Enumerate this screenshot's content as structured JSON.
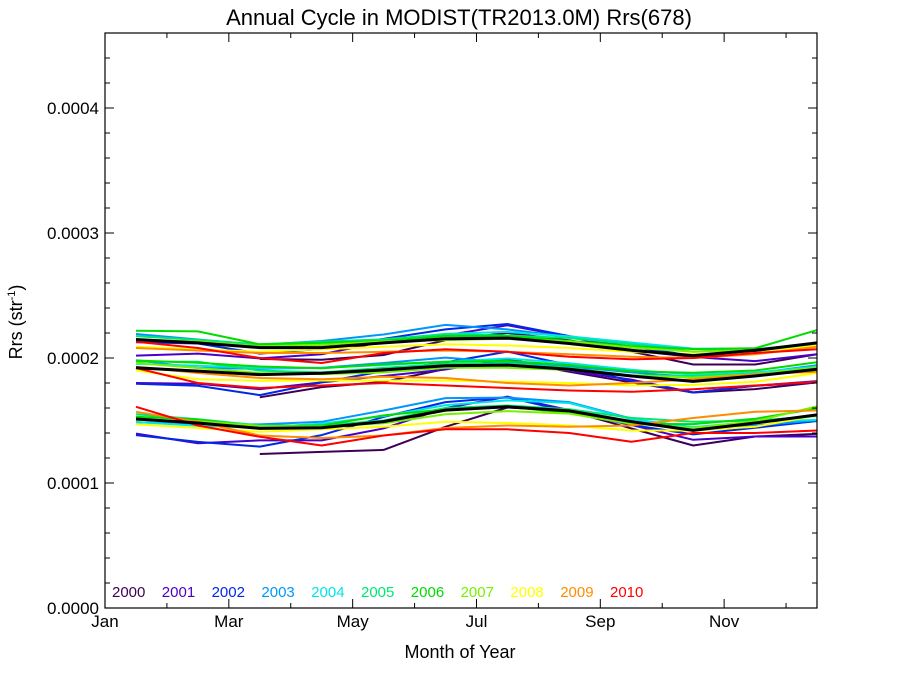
{
  "chart_data": {
    "type": "line",
    "title": "Annual Cycle in MODIST(TR2013.0M) Rrs(678)",
    "xlabel": "Month of Year",
    "ylabel": "Rrs (str",
    "ylabel_exp": "-1",
    "ylabel_end": ")",
    "xlim": [
      1,
      12.5
    ],
    "ylim": [
      0,
      0.00046
    ],
    "xticks": [
      {
        "value": 1,
        "label": "Jan"
      },
      {
        "value": 3,
        "label": "Mar"
      },
      {
        "value": 5,
        "label": "May"
      },
      {
        "value": 7,
        "label": "Jul"
      },
      {
        "value": 9,
        "label": "Sep"
      },
      {
        "value": 11,
        "label": "Nov"
      }
    ],
    "yticks": [
      {
        "value": 0,
        "label": "0.0000"
      },
      {
        "value": 0.0001,
        "label": "0.0001"
      },
      {
        "value": 0.0002,
        "label": "0.0002"
      },
      {
        "value": 0.0003,
        "label": "0.0003"
      },
      {
        "value": 0.0004,
        "label": "0.0004"
      }
    ],
    "x": [
      1.5,
      2.5,
      3.5,
      4.5,
      5.5,
      6.5,
      7.5,
      8.5,
      9.5,
      10.5,
      11.5,
      12.5
    ],
    "series": [
      {
        "name": "2000",
        "color": "#3d0057",
        "groups": [
          [
            null,
            null,
            0.0001686,
            0.0001767,
            0.000181,
            0.0001912,
            0.0001978,
            0.000189,
            0.0001805,
            0.0001724,
            0.0001751,
            0.0001805
          ],
          [
            null,
            null,
            0.0001232,
            0.0001249,
            0.0001265,
            0.000145,
            0.0001604,
            0.0001577,
            0.0001437,
            0.00013,
            0.0001372,
            0.0001393
          ],
          [
            null,
            null,
            0.0001992,
            0.0001986,
            0.0002024,
            0.0002143,
            0.0002201,
            0.0002141,
            0.0002051,
            0.0001948,
            0.0001948,
            0.000203
          ]
        ]
      },
      {
        "name": "2001",
        "color": "#4b00c8",
        "groups": [
          [
            0.00018,
            0.0001794,
            0.0001751,
            0.0001805,
            0.0001856,
            0.0001908,
            0.0001992,
            0.0001897,
            0.0001827,
            0.0001724,
            0.0001778,
            0.0001805
          ],
          [
            0.0001395,
            0.0001318,
            0.0001341,
            0.0001341,
            0.0001437,
            0.0001599,
            0.0001691,
            0.0001583,
            0.0001464,
            0.0001346,
            0.0001372,
            0.0001372
          ],
          [
            0.0002019,
            0.0002035,
            0.0001997,
            0.000203,
            0.0002132,
            0.0002181,
            0.0002262,
            0.000217,
            0.0002062,
            0.0002008,
            0.0001975,
            0.000203
          ]
        ]
      },
      {
        "name": "2002",
        "color": "#0028e6",
        "groups": [
          [
            0.0001794,
            0.0001778,
            0.0001703,
            0.0001805,
            0.0001895,
            0.0001965,
            0.0002051,
            0.0001943,
            0.0001815,
            0.0001724,
            0.0001778,
            0.0001815
          ],
          [
            0.0001383,
            0.0001329,
            0.0001291,
            0.0001383,
            0.0001529,
            0.0001647,
            0.0001686,
            0.0001572,
            0.0001464,
            0.0001389,
            0.0001442,
            0.0001496
          ],
          [
            0.0002126,
            0.0002116,
            0.0002035,
            0.0002073,
            0.0002154,
            0.0002229,
            0.0002272,
            0.0002175,
            0.0002089,
            0.0002019,
            0.0002046,
            0.0002116
          ]
        ]
      },
      {
        "name": "2003",
        "color": "#0096ff",
        "groups": [
          [
            0.0001982,
            0.0001921,
            0.0001914,
            0.0001922,
            0.000196,
            0.0002003,
            0.0001965,
            0.0001933,
            0.0001885,
            0.0001848,
            0.0001878,
            0.0001942
          ],
          [
            0.0001486,
            0.000147,
            0.0001469,
            0.000149,
            0.000158,
            0.0001679,
            0.0001683,
            0.0001647,
            0.0001515,
            0.0001432,
            0.0001459,
            0.0001502
          ],
          [
            0.0002192,
            0.0002148,
            0.0002105,
            0.0002136,
            0.0002188,
            0.0002265,
            0.0002229,
            0.0002169,
            0.0002118,
            0.0002072,
            0.0002062,
            0.0002105
          ]
        ]
      },
      {
        "name": "2004",
        "color": "#00e6e6",
        "groups": [
          [
            0.0001953,
            0.0001938,
            0.0001921,
            0.0001922,
            0.0001943,
            0.000197,
            0.0001996,
            0.0001958,
            0.0001906,
            0.0001867,
            0.0001884,
            0.0001931
          ],
          [
            0.0001488,
            0.0001458,
            0.0001442,
            0.0001475,
            0.0001535,
            0.0001623,
            0.0001661,
            0.000164,
            0.0001511,
            0.0001447,
            0.000149,
            0.0001505
          ],
          [
            0.000214,
            0.0002132,
            0.0002098,
            0.0002104,
            0.0002144,
            0.0002193,
            0.0002209,
            0.0002173,
            0.0002124,
            0.0002075,
            0.0002072,
            0.0002098
          ]
        ]
      },
      {
        "name": "2005",
        "color": "#00e673",
        "groups": [
          [
            0.0001971,
            0.000197,
            0.0001899,
            0.0001885,
            0.0001921,
            0.0001953,
            0.0001958,
            0.000192,
            0.0001861,
            0.0001856,
            0.0001874,
            0.000191
          ],
          [
            0.000155,
            0.000151,
            0.000146,
            0.000146,
            0.00015,
            0.00016,
            0.000162,
            0.000159,
            0.0001521,
            0.000149,
            0.0001499,
            0.0001535
          ],
          [
            0.0002175,
            0.0002145,
            0.000211,
            0.000213,
            0.000215,
            0.000219,
            0.000218,
            0.000216,
            0.000211,
            0.000205,
            0.000207,
            0.000212
          ]
        ]
      },
      {
        "name": "2006",
        "color": "#00dc00",
        "groups": [
          [
            0.000198,
            0.0001962,
            0.0001932,
            0.0001918,
            0.000195,
            0.000197,
            0.0001976,
            0.0001943,
            0.0001893,
            0.0001882,
            0.00019,
            0.0001966
          ],
          [
            0.000153,
            0.0001508,
            0.0001449,
            0.000146,
            0.0001541,
            0.000159,
            0.000161,
            0.000156,
            0.0001474,
            0.0001471,
            0.0001514,
            0.0001596
          ],
          [
            0.0002218,
            0.0002213,
            0.000211,
            0.0002121,
            0.0002137,
            0.0002175,
            0.0002175,
            0.0002137,
            0.0002094,
            0.0002072,
            0.0002078,
            0.0002223
          ]
        ]
      },
      {
        "name": "2007",
        "color": "#78f000",
        "groups": [
          [
            0.000196,
            0.000192,
            0.000188,
            0.0001871,
            0.0001885,
            0.0001922,
            0.0001922,
            0.0001905,
            0.000186,
            0.0001844,
            0.000187,
            0.0001925
          ],
          [
            0.0001505,
            0.0001495,
            0.0001456,
            0.000145,
            0.0001478,
            0.000155,
            0.0001575,
            0.0001555,
            0.0001474,
            0.000144,
            0.0001494,
            0.0001614
          ],
          [
            0.0002148,
            0.0002132,
            0.0002094,
            0.0002105,
            0.0002132,
            0.0002143,
            0.0002154,
            0.0002132,
            0.0002083,
            0.0002051,
            0.0002062,
            0.0002121
          ]
        ]
      },
      {
        "name": "2008",
        "color": "#ffff00",
        "groups": [
          [
            0.00019,
            0.000183,
            0.0001818,
            0.000182,
            0.000182,
            0.000182,
            0.000181,
            0.00018,
            0.000178,
            0.0001785,
            0.000181,
            0.000188
          ],
          [
            0.000147,
            0.000144,
            0.000141,
            0.000143,
            0.000145,
            0.000149,
            0.000148,
            0.000146,
            0.000142,
            0.000142,
            0.000145,
            0.000154
          ],
          [
            0.000209,
            0.000207,
            0.000205,
            0.000207,
            0.000209,
            0.000211,
            0.00021,
            0.000208,
            0.000205,
            0.000203,
            0.000204,
            0.00021
          ]
        ]
      },
      {
        "name": "2009",
        "color": "#ff8c00",
        "groups": [
          [
            0.000193,
            0.000188,
            0.000184,
            0.000183,
            0.000185,
            0.000184,
            0.00018,
            0.000178,
            0.00018,
            0.000183,
            0.000187,
            0.000189
          ],
          [
            0.000157,
            0.000149,
            0.000138,
            0.000136,
            0.000138,
            0.000144,
            0.000146,
            0.000145,
            0.000146,
            0.000152,
            0.000157,
            0.000158
          ],
          [
            0.000208,
            0.000206,
            0.000204,
            0.000204,
            0.000205,
            0.000206,
            0.000205,
            0.000203,
            0.000201,
            0.0002,
            0.000203,
            0.000209
          ]
        ]
      },
      {
        "name": "2010",
        "color": "#ff0000",
        "groups": [
          [
            0.000192,
            0.00018,
            0.000176,
            0.000178,
            0.00018,
            0.000178,
            0.000176,
            0.000174,
            0.000173,
            0.000175,
            0.000178,
            0.000181
          ],
          [
            0.000161,
            0.000146,
            0.000137,
            0.00013,
            0.000138,
            0.000143,
            0.000143,
            0.00014,
            0.000133,
            0.00014,
            0.00014,
            0.000142
          ],
          [
            0.000213,
            0.000208,
            0.0002,
            0.000196,
            0.000204,
            0.000207,
            0.000205,
            0.000201,
            0.000199,
            0.0002,
            0.000204,
            0.000207
          ]
        ]
      },
      {
        "name": "",
        "color": "#000000",
        "bold": true,
        "groups": [
          [
            0.0001922,
            0.0001895,
            0.0001867,
            0.0001878,
            0.0001905,
            0.0001938,
            0.0001943,
            0.000191,
            0.0001856,
            0.0001813,
            0.0001856,
            0.000191
          ],
          [
            0.0001512,
            0.000148,
            0.0001437,
            0.0001442,
            0.0001491,
            0.0001583,
            0.000161,
            0.0001577,
            0.0001491,
            0.0001421,
            0.000148,
            0.0001545
          ],
          [
            0.0002148,
            0.0002121,
            0.0002083,
            0.0002083,
            0.0002121,
            0.0002154,
            0.0002159,
            0.0002116,
            0.0002062,
            0.0002019,
            0.0002062,
            0.0002121
          ]
        ]
      }
    ],
    "grid": false,
    "legend": "bottom-left"
  }
}
